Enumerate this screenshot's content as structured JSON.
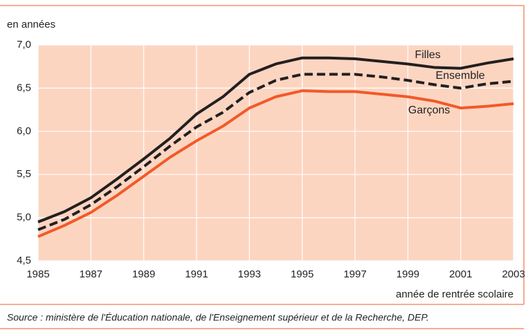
{
  "chart_data": {
    "type": "line",
    "y_label": "en années",
    "x_label": "année de rentrée scolaire",
    "source": "Source : ministère de l'Éducation nationale, de l'Enseignement supérieur et de la Recherche, DEP.",
    "x": [
      1985,
      1986,
      1987,
      1988,
      1989,
      1990,
      1991,
      1992,
      1993,
      1994,
      1995,
      1996,
      1997,
      1998,
      1999,
      2000,
      2001,
      2002,
      2003
    ],
    "series": [
      {
        "name": "Filles",
        "color": "#231f20",
        "line_style": "solid",
        "values": [
          4.95,
          5.07,
          5.23,
          5.45,
          5.68,
          5.92,
          6.2,
          6.4,
          6.66,
          6.78,
          6.85,
          6.85,
          6.84,
          6.81,
          6.78,
          6.74,
          6.73,
          6.79,
          6.84
        ]
      },
      {
        "name": "Ensemble",
        "color": "#231f20",
        "line_style": "dashed",
        "values": [
          4.86,
          4.98,
          5.15,
          5.36,
          5.59,
          5.83,
          6.05,
          6.22,
          6.45,
          6.59,
          6.66,
          6.66,
          6.66,
          6.63,
          6.59,
          6.54,
          6.5,
          6.55,
          6.58
        ]
      },
      {
        "name": "Garçons",
        "color": "#f15a29",
        "line_style": "solid",
        "values": [
          4.78,
          4.91,
          5.06,
          5.26,
          5.48,
          5.7,
          5.89,
          6.06,
          6.27,
          6.4,
          6.47,
          6.46,
          6.46,
          6.43,
          6.4,
          6.35,
          6.27,
          6.29,
          6.32
        ]
      }
    ],
    "xlim": [
      1985,
      2003
    ],
    "xticks": [
      1985,
      1987,
      1989,
      1991,
      1993,
      1995,
      1997,
      1999,
      2001,
      2003
    ],
    "ylim": [
      4.5,
      7.0
    ],
    "yticks": [
      {
        "value": 4.5,
        "label": "4,5"
      },
      {
        "value": 5.0,
        "label": "5,0"
      },
      {
        "value": 5.5,
        "label": "5,5"
      },
      {
        "value": 6.0,
        "label": "6,0"
      },
      {
        "value": 6.5,
        "label": "6,5"
      },
      {
        "value": 7.0,
        "label": "7,0"
      }
    ],
    "grid": true,
    "plot_background": "#fcd5c1"
  }
}
